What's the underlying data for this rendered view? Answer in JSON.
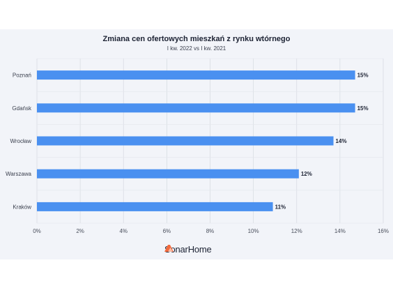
{
  "chart_data": {
    "type": "bar",
    "orientation": "horizontal",
    "title": "Zmiana cen ofertowych mieszkań z rynku wtórnego",
    "subtitle": "I kw. 2022 vs I kw. 2021",
    "categories": [
      "Poznań",
      "Gdańsk",
      "Wrocław",
      "Warszawa",
      "Kraków"
    ],
    "values": [
      14.7,
      14.7,
      13.7,
      12.1,
      10.9
    ],
    "data_labels": [
      "15%",
      "15%",
      "14%",
      "12%",
      "11%"
    ],
    "xlim": [
      0,
      16
    ],
    "x_ticks": [
      "0%",
      "2%",
      "4%",
      "6%",
      "8%",
      "10%",
      "12%",
      "14%",
      "16%"
    ],
    "grid": "vertical",
    "bar_color": "#4a90f0"
  },
  "brand": {
    "name": "SonarHome",
    "color": "#f26a3d"
  }
}
